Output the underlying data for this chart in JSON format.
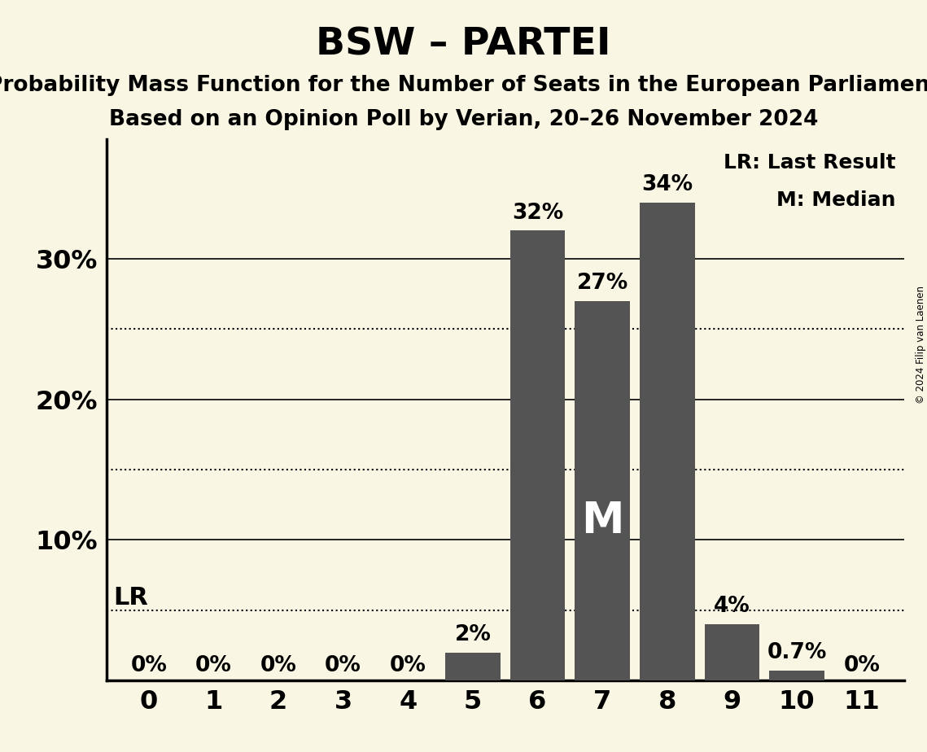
{
  "title": "BSW – PARTEI",
  "subtitle1": "Probability Mass Function for the Number of Seats in the European Parliament",
  "subtitle2": "Based on an Opinion Poll by Verian, 20–26 November 2024",
  "copyright": "© 2024 Filip van Laenen",
  "seats": [
    0,
    1,
    2,
    3,
    4,
    5,
    6,
    7,
    8,
    9,
    10,
    11
  ],
  "probabilities": [
    0.0,
    0.0,
    0.0,
    0.0,
    0.0,
    0.02,
    0.32,
    0.27,
    0.34,
    0.04,
    0.007,
    0.0
  ],
  "bar_labels": [
    "0%",
    "0%",
    "0%",
    "0%",
    "0%",
    "2%",
    "32%",
    "27%",
    "34%",
    "4%",
    "0.7%",
    "0%"
  ],
  "bar_color": "#545454",
  "background_color": "#faf6e4",
  "lr_value": 0.05,
  "median_seat": 7,
  "ylim": [
    0,
    0.385
  ],
  "yticks": [
    0.0,
    0.1,
    0.2,
    0.3
  ],
  "ytick_labels": [
    "",
    "10%",
    "20%",
    "30%"
  ],
  "solid_lines": [
    0.1,
    0.2,
    0.3
  ],
  "dotted_lines": [
    0.05,
    0.15,
    0.25
  ],
  "legend_lr": "LR: Last Result",
  "legend_m": "M: Median",
  "title_fontsize": 34,
  "subtitle_fontsize": 19,
  "axis_tick_fontsize": 23,
  "bar_label_fontsize": 19,
  "lr_label_fontsize": 22,
  "m_fontsize": 38,
  "legend_fontsize": 18
}
